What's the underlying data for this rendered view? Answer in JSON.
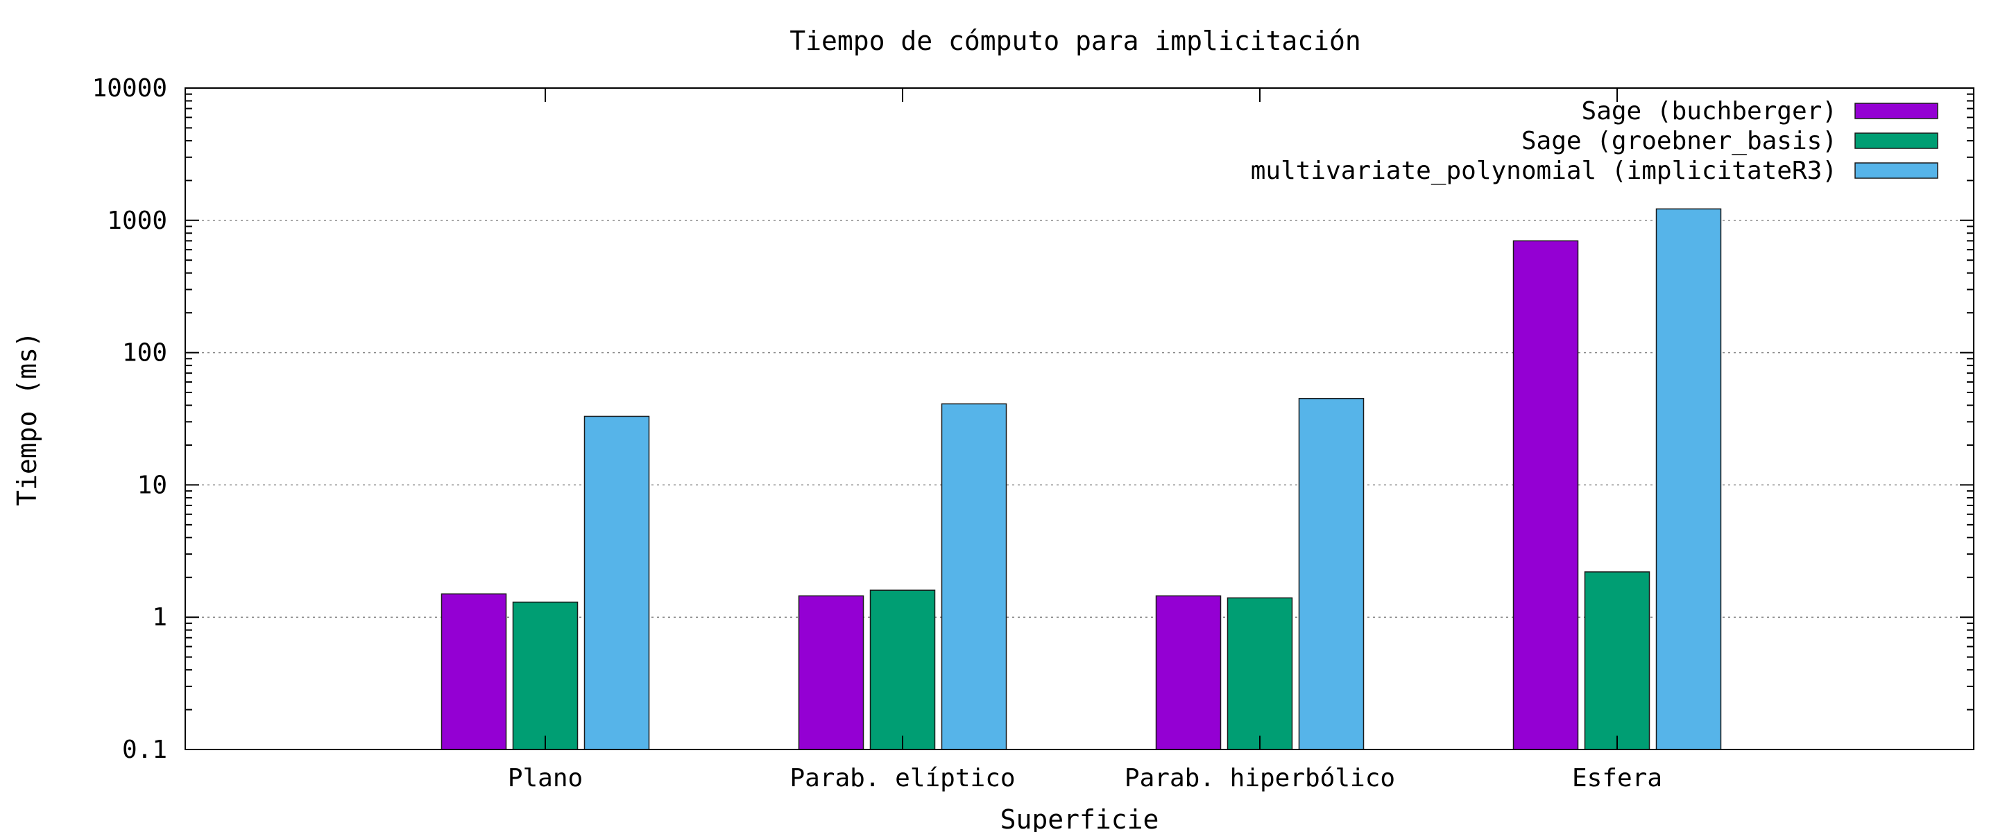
{
  "chart_data": {
    "type": "bar",
    "title": "Tiempo de cómputo para implicitación",
    "xlabel": "Superficie",
    "ylabel": "Tiempo (ms)",
    "yscale": "log",
    "ylim": [
      0.1,
      10000
    ],
    "yticks": [
      {
        "value": 0.1,
        "label": "0.1"
      },
      {
        "value": 1,
        "label": "1"
      },
      {
        "value": 10,
        "label": "10"
      },
      {
        "value": 100,
        "label": "100"
      },
      {
        "value": 1000,
        "label": "1000"
      },
      {
        "value": 10000,
        "label": "10000"
      }
    ],
    "grid": true,
    "legend_position": "top-right",
    "categories": [
      "Plano",
      "Parab. elíptico",
      "Parab. hiperbólico",
      "Esfera"
    ],
    "series": [
      {
        "name": "Sage (buchberger)",
        "color": "#9400d3",
        "values": [
          1.5,
          1.45,
          1.45,
          700
        ]
      },
      {
        "name": "Sage (groebner_basis)",
        "color": "#009e73",
        "values": [
          1.3,
          1.6,
          1.4,
          2.2
        ]
      },
      {
        "name": "multivariate_polynomial (implicitateR3)",
        "color": "#56b4e9",
        "values": [
          33,
          41,
          45,
          1220
        ]
      }
    ]
  }
}
